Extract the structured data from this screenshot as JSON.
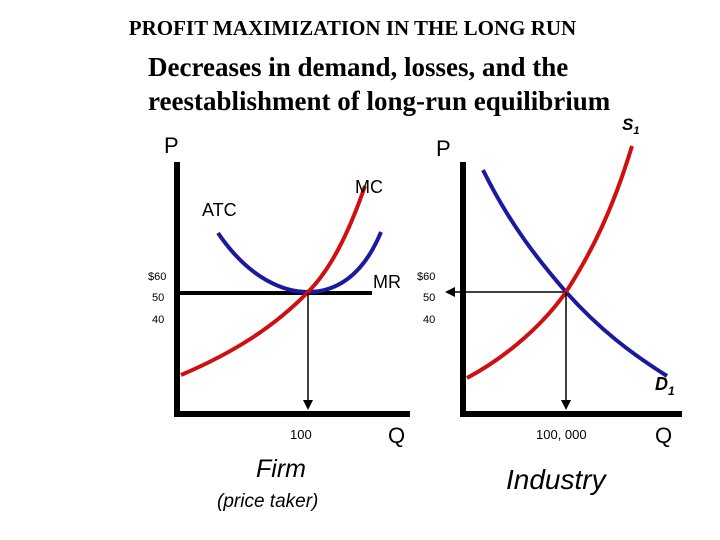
{
  "title": "PROFIT MAXIMIZATION IN THE LONG RUN",
  "subtitle_line1": "Decreases in demand, losses, and the",
  "subtitle_line2": "reestablishment of long-run equilibrium",
  "firm": {
    "y_axis_label": "P",
    "x_axis_label": "Q",
    "caption": "Firm",
    "sub_caption": "(price taker)",
    "curve_labels": {
      "atc": "ATC",
      "mc": "MC",
      "mr": "MR"
    },
    "price_ticks": [
      "$60",
      "50",
      "40"
    ],
    "quantity_tick": "100"
  },
  "industry": {
    "y_axis_label": "P",
    "x_axis_label": "Q",
    "caption": "Industry",
    "supply_label": "S",
    "supply_sub": "1",
    "demand_label": "D",
    "demand_sub": "1",
    "price_ticks": [
      "$60",
      "50",
      "40"
    ],
    "quantity_tick": "100, 000"
  },
  "colors": {
    "atc": "#1a1aa0",
    "mc": "#d01010",
    "axis": "#000000"
  }
}
